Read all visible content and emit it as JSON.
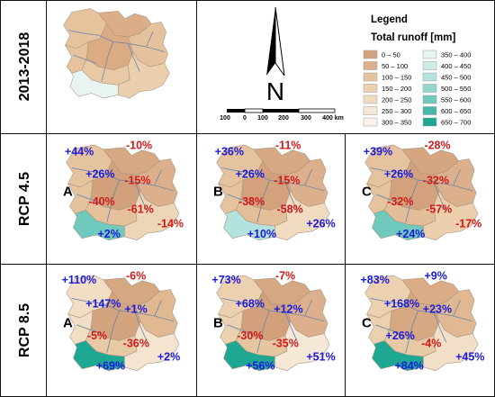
{
  "rows": [
    {
      "label": "2013-2018"
    },
    {
      "label": "RCP 4.5"
    },
    {
      "label": "RCP 8.5"
    }
  ],
  "legend": {
    "title": "Legend",
    "subtitle": "Total runoff [mm]",
    "items": [
      {
        "label": "0 – 50",
        "color": "#d2a27d"
      },
      {
        "label": "50 – 100",
        "color": "#dcb08c"
      },
      {
        "label": "100 – 150",
        "color": "#e5c39e"
      },
      {
        "label": "150 – 200",
        "color": "#ecd1b1"
      },
      {
        "label": "200 – 250",
        "color": "#f1dcc2"
      },
      {
        "label": "250 – 300",
        "color": "#f6e8d6"
      },
      {
        "label": "300 – 350",
        "color": "#fbf3e9"
      },
      {
        "label": "350 – 400",
        "color": "#e6f5f2"
      },
      {
        "label": "400 – 450",
        "color": "#cdece7"
      },
      {
        "label": "450 – 500",
        "color": "#b3e3dc"
      },
      {
        "label": "500 – 550",
        "color": "#94d7cd"
      },
      {
        "label": "550 – 600",
        "color": "#6fc9bc"
      },
      {
        "label": "600 – 650",
        "color": "#46b9a8"
      },
      {
        "label": "650 – 700",
        "color": "#1ea793"
      }
    ]
  },
  "scalebar": {
    "labels": [
      "100",
      "0",
      "100",
      "200",
      "300",
      "400 km"
    ]
  },
  "north": {
    "label": "N"
  },
  "scenarios": [
    {
      "id": "baseline",
      "row": 0,
      "col": 0,
      "letter": "",
      "changes": [],
      "fills": {
        "nw": "#e7c39d",
        "north": "#dcae88",
        "center": "#dbab84",
        "east": "#e5c29d",
        "south": "#e8c9a6",
        "southeast": "#eccfad",
        "southwest": "#e8f4f1"
      }
    },
    {
      "id": "rcp45-a",
      "row": 1,
      "col": 0,
      "letter": "A",
      "changes": [
        "+44%",
        "-10%",
        "+26%",
        "-15%",
        "-40%",
        "-61%",
        "-14%",
        "+2%"
      ],
      "fills": {
        "nw": "#e6c39f",
        "north": "#d7a983",
        "center": "#d2a07b",
        "east": "#dcb08c",
        "south": "#e4c09b",
        "southeast": "#edd6b7",
        "southwest": "#6fc9bc"
      }
    },
    {
      "id": "rcp45-b",
      "row": 1,
      "col": 1,
      "letter": "B",
      "changes": [
        "+36%",
        "-11%",
        "+26%",
        "-15%",
        "-38%",
        "-58%",
        "+26%",
        "+10%"
      ],
      "fills": {
        "nw": "#e6c39f",
        "north": "#d7a983",
        "center": "#d3a27c",
        "east": "#dcb08c",
        "south": "#e3be99",
        "southeast": "#f1dcc2",
        "southwest": "#b3e3dc"
      }
    },
    {
      "id": "rcp45-c",
      "row": 1,
      "col": 2,
      "letter": "C",
      "changes": [
        "+39%",
        "-28%",
        "+26%",
        "-32%",
        "-32%",
        "-57%",
        "-17%",
        "+24%"
      ],
      "fills": {
        "nw": "#e6c39f",
        "north": "#d5a67f",
        "center": "#d3a27c",
        "east": "#dcb08c",
        "south": "#e2bd97",
        "southeast": "#eccfad",
        "southwest": "#6fc9bc"
      }
    },
    {
      "id": "rcp85-a",
      "row": 2,
      "col": 0,
      "letter": "A",
      "changes": [
        "+110%",
        "-6%",
        "+147%",
        "+1%",
        "-5%",
        "-36%",
        "+2%",
        "+69%"
      ],
      "fills": {
        "nw": "#f2dec5",
        "north": "#d6a882",
        "center": "#d4a47e",
        "east": "#e0b892",
        "south": "#e8c9a6",
        "southeast": "#f4e4d0",
        "southwest": "#1ea793"
      }
    },
    {
      "id": "rcp85-b",
      "row": 2,
      "col": 1,
      "letter": "B",
      "changes": [
        "+73%",
        "-7%",
        "+68%",
        "+12%",
        "-30%",
        "-35%",
        "+51%",
        "+56%"
      ],
      "fills": {
        "nw": "#ecd1b1",
        "north": "#d6a882",
        "center": "#d2a07b",
        "east": "#dcb08c",
        "south": "#e6c5a1",
        "southeast": "#f6e8d6",
        "southwest": "#1ea793"
      }
    },
    {
      "id": "rcp85-c",
      "row": 2,
      "col": 2,
      "letter": "C",
      "changes": [
        "+83%",
        "+9%",
        "+168%",
        "+23%",
        "+26%",
        "-4%",
        "+45%",
        "+84%"
      ],
      "fills": {
        "nw": "#ecd1b1",
        "north": "#dbad87",
        "center": "#d7a983",
        "east": "#e0b892",
        "south": "#e8c9a6",
        "southeast": "#f2dfc8",
        "southwest": "#1ea793"
      }
    }
  ]
}
